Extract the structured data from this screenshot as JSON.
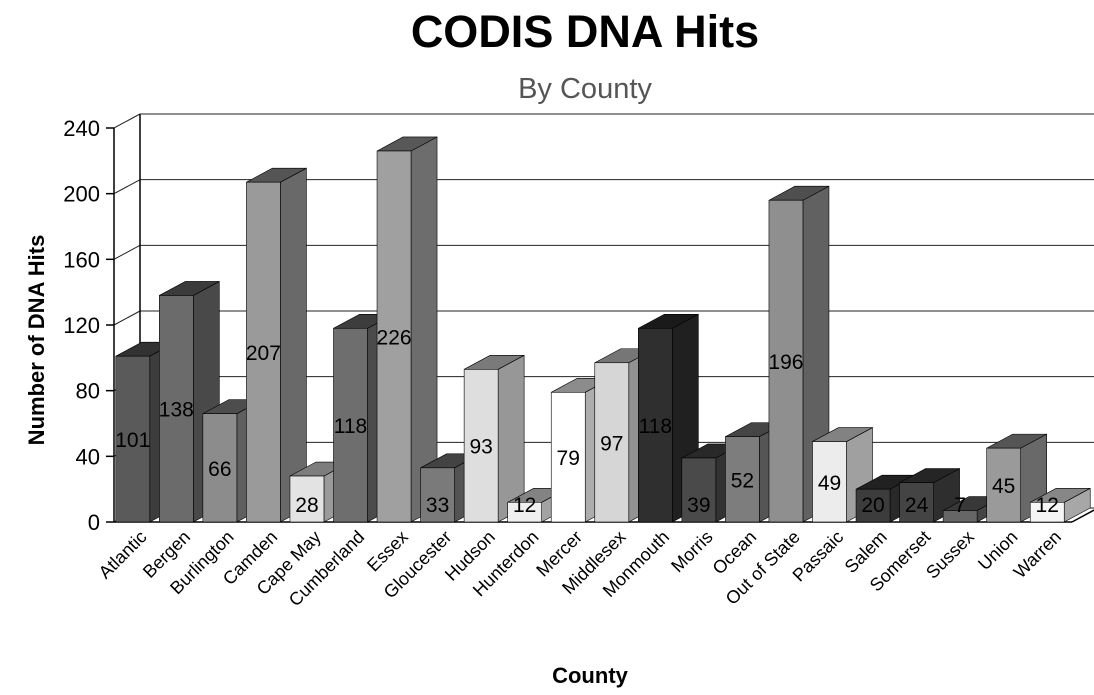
{
  "chart_data": {
    "type": "bar",
    "title": "CODIS DNA Hits",
    "subtitle": "By County",
    "xlabel": "County",
    "ylabel": "Number of DNA Hits",
    "ylim": [
      0,
      240
    ],
    "yticks": [
      0,
      40,
      80,
      120,
      160,
      200,
      240
    ],
    "grid": true,
    "legend": "none",
    "categories": [
      "Atlantic",
      "Bergen",
      "Burlington",
      "Camden",
      "Cape May",
      "Cumberland",
      "Essex",
      "Gloucester",
      "Hudson",
      "Hunterdon",
      "Mercer",
      "Middlesex",
      "Monmouth",
      "Morris",
      "Ocean",
      "Out of State",
      "Passaic",
      "Salem",
      "Somerset",
      "Sussex",
      "Union",
      "Warren"
    ],
    "values": [
      101,
      138,
      66,
      207,
      28,
      118,
      226,
      33,
      93,
      12,
      79,
      97,
      118,
      39,
      52,
      196,
      49,
      20,
      24,
      7,
      45,
      12
    ],
    "colors": [
      "#5a5a5a",
      "#6b6b6b",
      "#8c8c8c",
      "#9a9a9a",
      "#e3e3e3",
      "#6e6e6e",
      "#a0a0a0",
      "#7a7a7a",
      "#dedede",
      "#efefef",
      "#ffffff",
      "#d6d6d6",
      "#2f2f2f",
      "#4a4a4a",
      "#7d7d7d",
      "#8f8f8f",
      "#ececec",
      "#3c3c3c",
      "#444444",
      "#666666",
      "#9a9a9a",
      "#f5f5f5"
    ]
  }
}
